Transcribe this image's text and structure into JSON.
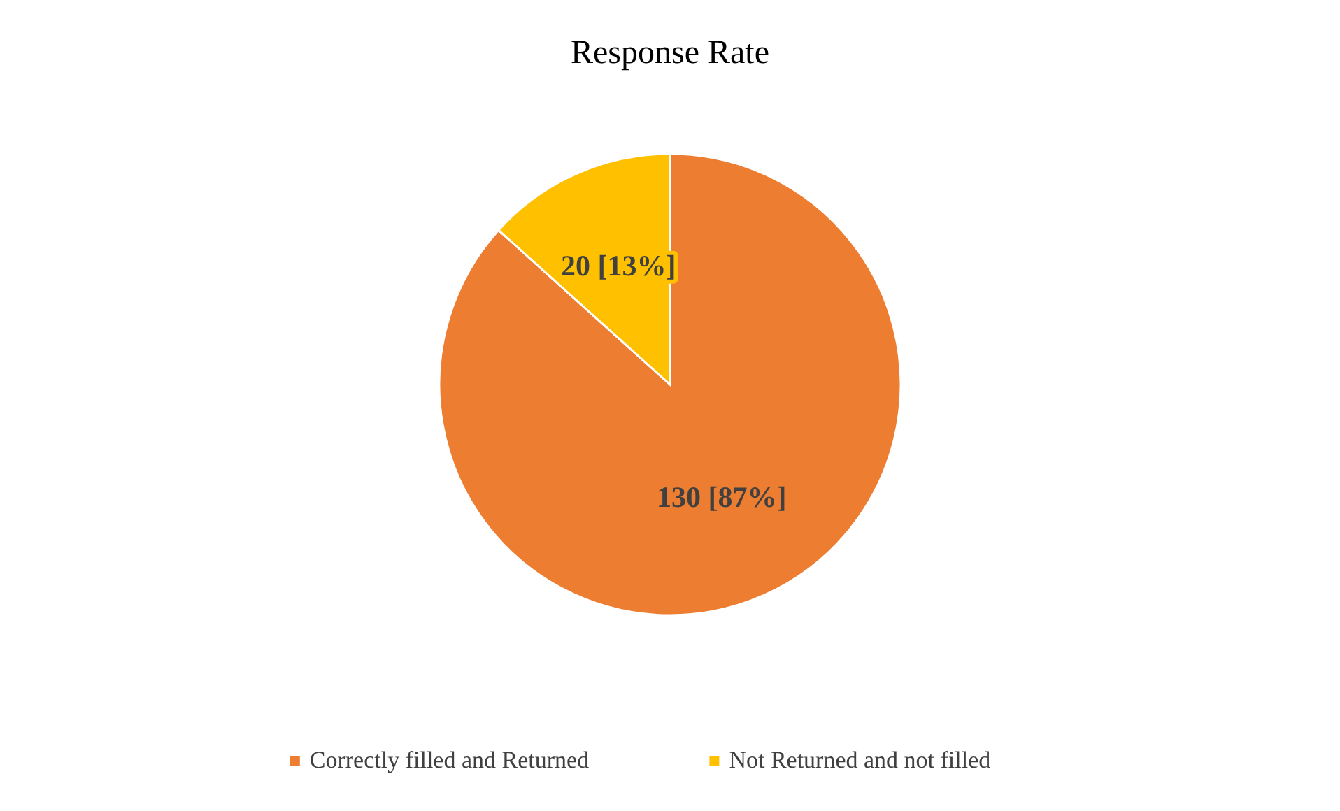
{
  "chart_data": {
    "type": "pie",
    "title": "Response Rate",
    "categories": [
      "Correctly filled and Returned",
      "Not Returned and not filled"
    ],
    "values": [
      130,
      20
    ],
    "value_labels": [
      "130 [87%]",
      "20 [13%]"
    ],
    "colors": [
      "#ed7d31",
      "#ffc000"
    ],
    "legend": "bottom"
  }
}
